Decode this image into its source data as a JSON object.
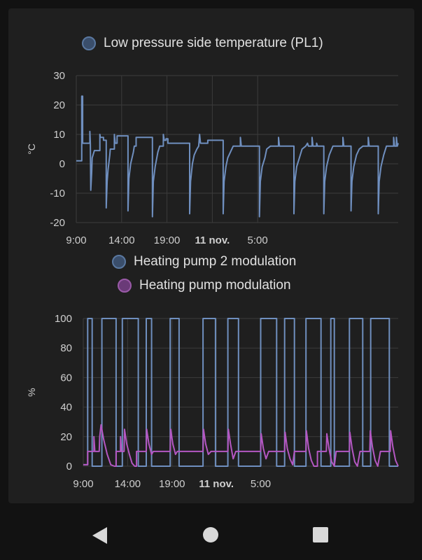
{
  "chart_data": [
    {
      "type": "line",
      "ylabel": "°C",
      "ylim": [
        -20,
        30
      ],
      "yticks": [
        30,
        20,
        10,
        0,
        -10,
        -20
      ],
      "xticks": [
        "9:00",
        "14:00",
        "19:00",
        "11 nov.",
        "5:00"
      ],
      "grid": true,
      "series": [
        {
          "name": "Low pressure side temperature (PL1)",
          "color": "#6f8fbf",
          "step": true,
          "points": [
            [
              0,
              1
            ],
            [
              0.6,
              1
            ],
            [
              0.6,
              23
            ],
            [
              0.7,
              23
            ],
            [
              0.7,
              7
            ],
            [
              1.5,
              7
            ],
            [
              1.5,
              11
            ],
            [
              1.55,
              7
            ],
            [
              1.6,
              -9
            ],
            [
              1.7,
              -3
            ],
            [
              1.75,
              2
            ],
            [
              2,
              4.5
            ],
            [
              2.6,
              4.5
            ],
            [
              2.6,
              10
            ],
            [
              2.65,
              9
            ],
            [
              3,
              9
            ],
            [
              3,
              8
            ],
            [
              3.3,
              8
            ],
            [
              3.3,
              -15
            ],
            [
              3.4,
              -6
            ],
            [
              3.5,
              -2
            ],
            [
              3.7,
              3
            ],
            [
              3.75,
              5
            ],
            [
              4.2,
              5
            ],
            [
              4.2,
              10
            ],
            [
              4.3,
              7
            ],
            [
              4.5,
              7
            ],
            [
              4.5,
              9.5
            ],
            [
              5.7,
              9.5
            ],
            [
              5.7,
              -16
            ],
            [
              5.8,
              -5
            ],
            [
              6,
              0
            ],
            [
              6.3,
              4
            ],
            [
              6.4,
              6
            ],
            [
              6.6,
              6
            ],
            [
              6.6,
              9
            ],
            [
              8.4,
              9
            ],
            [
              8.4,
              -18
            ],
            [
              8.5,
              -6
            ],
            [
              8.7,
              -1
            ],
            [
              9,
              4
            ],
            [
              9.2,
              6
            ],
            [
              9.6,
              6
            ],
            [
              9.6,
              10
            ],
            [
              9.7,
              8
            ],
            [
              9.9,
              8
            ],
            [
              9.9,
              8.5
            ],
            [
              10.1,
              8.5
            ],
            [
              10.1,
              7
            ],
            [
              12.5,
              7
            ],
            [
              12.5,
              -17
            ],
            [
              12.6,
              -6
            ],
            [
              12.8,
              0
            ],
            [
              13,
              3
            ],
            [
              13.3,
              5
            ],
            [
              13.5,
              6
            ],
            [
              13.6,
              10
            ],
            [
              13.7,
              7
            ],
            [
              14,
              7
            ],
            [
              14.5,
              7
            ],
            [
              14.5,
              8
            ],
            [
              16.2,
              8
            ],
            [
              16.2,
              -17
            ],
            [
              16.3,
              -6
            ],
            [
              16.5,
              -1
            ],
            [
              16.7,
              2
            ],
            [
              17,
              4
            ],
            [
              17.3,
              6
            ],
            [
              18.1,
              6
            ],
            [
              18.1,
              9
            ],
            [
              18.2,
              6
            ],
            [
              20.2,
              6
            ],
            [
              20.2,
              -18
            ],
            [
              20.3,
              -6
            ],
            [
              20.5,
              -1
            ],
            [
              20.8,
              2
            ],
            [
              21,
              5
            ],
            [
              21.4,
              6
            ],
            [
              22.3,
              6
            ],
            [
              22.3,
              9
            ],
            [
              22.4,
              6
            ],
            [
              24,
              6
            ],
            [
              24,
              -17
            ],
            [
              24.1,
              -6
            ],
            [
              24.3,
              -1
            ],
            [
              24.6,
              2
            ],
            [
              24.9,
              5
            ],
            [
              25.3,
              6
            ],
            [
              25.5,
              7
            ],
            [
              25.6,
              6
            ],
            [
              26,
              6
            ],
            [
              26,
              9
            ],
            [
              26.1,
              6
            ],
            [
              26.5,
              6
            ],
            [
              26.5,
              7
            ],
            [
              26.6,
              6
            ],
            [
              27.3,
              6
            ],
            [
              27.3,
              -17
            ],
            [
              27.4,
              -6
            ],
            [
              27.6,
              -1
            ],
            [
              27.9,
              3
            ],
            [
              28.3,
              6
            ],
            [
              29.4,
              6
            ],
            [
              29.4,
              9
            ],
            [
              29.5,
              6
            ],
            [
              30.3,
              6
            ],
            [
              30.3,
              -16
            ],
            [
              30.4,
              -6
            ],
            [
              30.6,
              -1
            ],
            [
              30.9,
              3
            ],
            [
              31.2,
              5
            ],
            [
              31.6,
              6
            ],
            [
              32.2,
              6
            ],
            [
              32.2,
              9
            ],
            [
              32.3,
              6
            ],
            [
              33.3,
              6
            ],
            [
              33.3,
              -17
            ],
            [
              33.4,
              -6
            ],
            [
              33.6,
              -1
            ],
            [
              33.9,
              3
            ],
            [
              34.2,
              6
            ],
            [
              35,
              6
            ],
            [
              35,
              9
            ],
            [
              35.1,
              6
            ],
            [
              35.3,
              6
            ],
            [
              35.3,
              9
            ],
            [
              35.4,
              6
            ],
            [
              35.5,
              7
            ]
          ]
        }
      ]
    },
    {
      "type": "line",
      "ylabel": "%",
      "ylim": [
        0,
        100
      ],
      "yticks": [
        100,
        80,
        60,
        40,
        20,
        0
      ],
      "xticks": [
        "9:00",
        "14:00",
        "19:00",
        "11 nov.",
        "5:00"
      ],
      "grid": true,
      "series": [
        {
          "name": "Heating pump 2 modulation",
          "color": "#6f8fbf",
          "step": true,
          "points": [
            [
              0,
              1
            ],
            [
              0.5,
              1
            ],
            [
              0.5,
              100
            ],
            [
              1,
              100
            ],
            [
              1,
              0
            ],
            [
              2.1,
              0
            ],
            [
              2.1,
              100
            ],
            [
              3.7,
              100
            ],
            [
              3.7,
              0
            ],
            [
              4.4,
              0
            ],
            [
              4.4,
              100
            ],
            [
              6.2,
              100
            ],
            [
              6.2,
              0
            ],
            [
              7.1,
              0
            ],
            [
              7.1,
              100
            ],
            [
              7.7,
              100
            ],
            [
              7.7,
              0
            ],
            [
              9.8,
              0
            ],
            [
              9.8,
              100
            ],
            [
              10.8,
              100
            ],
            [
              10.8,
              0
            ],
            [
              13.5,
              0
            ],
            [
              13.5,
              100
            ],
            [
              14.9,
              100
            ],
            [
              14.9,
              0
            ],
            [
              16.3,
              0
            ],
            [
              16.3,
              100
            ],
            [
              17.5,
              100
            ],
            [
              17.5,
              0
            ],
            [
              20,
              0
            ],
            [
              20,
              100
            ],
            [
              21.8,
              100
            ],
            [
              21.8,
              0
            ],
            [
              22.7,
              0
            ],
            [
              22.7,
              100
            ],
            [
              23.8,
              100
            ],
            [
              23.8,
              0
            ],
            [
              25.1,
              0
            ],
            [
              25.1,
              100
            ],
            [
              26.8,
              100
            ],
            [
              26.8,
              0
            ],
            [
              27.9,
              0
            ],
            [
              27.9,
              100
            ],
            [
              28.3,
              100
            ],
            [
              28.3,
              0
            ],
            [
              30,
              0
            ],
            [
              30,
              100
            ],
            [
              31.5,
              100
            ],
            [
              31.5,
              0
            ],
            [
              32.4,
              0
            ],
            [
              32.4,
              100
            ],
            [
              34.5,
              100
            ],
            [
              34.5,
              0
            ],
            [
              35.5,
              0
            ]
          ]
        },
        {
          "name": "Heating pump modulation",
          "color": "#b457c2",
          "step": false,
          "points": [
            [
              0,
              1
            ],
            [
              0.5,
              1
            ],
            [
              0.5,
              10
            ],
            [
              1.2,
              10
            ],
            [
              1.2,
              20
            ],
            [
              1.3,
              10
            ],
            [
              1.8,
              10
            ],
            [
              1.85,
              20
            ],
            [
              2,
              28
            ],
            [
              2.3,
              18
            ],
            [
              2.7,
              8
            ],
            [
              3.1,
              1
            ],
            [
              3.5,
              0
            ],
            [
              3.7,
              0
            ],
            [
              3.7,
              10
            ],
            [
              4.2,
              10
            ],
            [
              4.2,
              20
            ],
            [
              4.3,
              10
            ],
            [
              4.6,
              10
            ],
            [
              4.65,
              25
            ],
            [
              4.9,
              15
            ],
            [
              5.2,
              8
            ],
            [
              5.5,
              2
            ],
            [
              5.8,
              0
            ],
            [
              6,
              0
            ],
            [
              6,
              10
            ],
            [
              7.1,
              10
            ],
            [
              7.15,
              25
            ],
            [
              7.4,
              15
            ],
            [
              7.7,
              8
            ],
            [
              7.9,
              10
            ],
            [
              9.8,
              10
            ],
            [
              9.85,
              25
            ],
            [
              10.1,
              15
            ],
            [
              10.4,
              8
            ],
            [
              10.6,
              10
            ],
            [
              13.5,
              10
            ],
            [
              13.55,
              25
            ],
            [
              13.8,
              15
            ],
            [
              14.1,
              8
            ],
            [
              14.4,
              10
            ],
            [
              16.3,
              10
            ],
            [
              16.35,
              25
            ],
            [
              16.6,
              15
            ],
            [
              16.9,
              5
            ],
            [
              17.2,
              10
            ],
            [
              20,
              10
            ],
            [
              20.05,
              22
            ],
            [
              20.3,
              12
            ],
            [
              20.6,
              5
            ],
            [
              20.9,
              10
            ],
            [
              22.7,
              10
            ],
            [
              22.75,
              23
            ],
            [
              23,
              12
            ],
            [
              23.3,
              5
            ],
            [
              23.6,
              1
            ],
            [
              23.8,
              10
            ],
            [
              25.1,
              10
            ],
            [
              25.15,
              24
            ],
            [
              25.4,
              12
            ],
            [
              25.7,
              4
            ],
            [
              26,
              0
            ],
            [
              26.4,
              0
            ],
            [
              26.4,
              10
            ],
            [
              27.4,
              10
            ],
            [
              27.45,
              22
            ],
            [
              27.7,
              12
            ],
            [
              28,
              3
            ],
            [
              28.3,
              0
            ],
            [
              28.5,
              10
            ],
            [
              30,
              10
            ],
            [
              30.05,
              23
            ],
            [
              30.3,
              12
            ],
            [
              30.6,
              3
            ],
            [
              30.9,
              0
            ],
            [
              31.2,
              10
            ],
            [
              32.3,
              10
            ],
            [
              32.35,
              24
            ],
            [
              32.6,
              13
            ],
            [
              32.9,
              4
            ],
            [
              33.2,
              0
            ],
            [
              33.5,
              10
            ],
            [
              34.6,
              10
            ],
            [
              34.65,
              24
            ],
            [
              34.9,
              13
            ],
            [
              35.2,
              4
            ],
            [
              35.5,
              0
            ]
          ]
        }
      ]
    }
  ],
  "nav": {
    "back_icon": "back-icon",
    "home_icon": "home-icon",
    "recents_icon": "recents-icon"
  }
}
